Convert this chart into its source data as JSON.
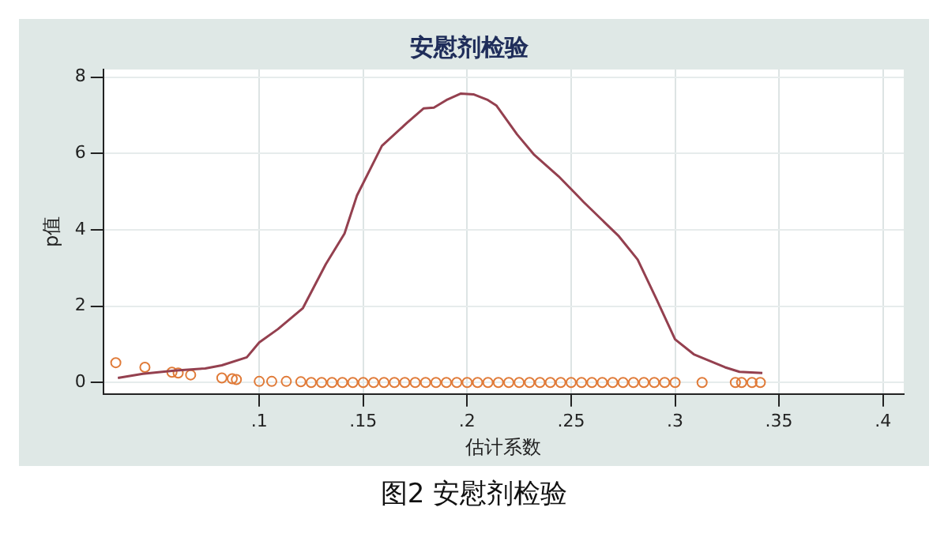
{
  "chart_data": {
    "type": "line",
    "title": "安慰剂检验",
    "xlabel": "估计系数",
    "ylabel": "p值",
    "annotations": [
      "图2  安慰剂检验"
    ],
    "series": [
      {
        "color": "#94404f",
        "marker": "none",
        "x": [
          0.032,
          0.044,
          0.059,
          0.074,
          0.082,
          0.094,
          0.1,
          0.109,
          0.121,
          0.132,
          0.141,
          0.147,
          0.159,
          0.171,
          0.179,
          0.184,
          0.19,
          0.197,
          0.203,
          0.21,
          0.214,
          0.224,
          0.232,
          0.244,
          0.253,
          0.256,
          0.273,
          0.282,
          0.291,
          0.3,
          0.309,
          0.324,
          0.331,
          0.342
        ],
        "values": [
          0.12,
          0.23,
          0.31,
          0.37,
          0.45,
          0.66,
          1.05,
          1.4,
          1.95,
          3.1,
          3.9,
          4.9,
          6.2,
          6.8,
          7.18,
          7.2,
          7.4,
          7.57,
          7.55,
          7.4,
          7.26,
          6.5,
          5.98,
          5.4,
          4.9,
          4.73,
          3.83,
          3.22,
          2.19,
          1.13,
          0.74,
          0.4,
          0.28,
          0.25
        ]
      },
      {
        "type": "scatter",
        "color": "#e07b39",
        "marker": "circle",
        "x": [
          0.031,
          0.045,
          0.058,
          0.061,
          0.067,
          0.082,
          0.087,
          0.089,
          0.1,
          0.106,
          0.113,
          0.12,
          0.125,
          0.13,
          0.135,
          0.14,
          0.145,
          0.15,
          0.155,
          0.16,
          0.165,
          0.17,
          0.175,
          0.18,
          0.185,
          0.19,
          0.195,
          0.2,
          0.205,
          0.21,
          0.215,
          0.22,
          0.225,
          0.23,
          0.235,
          0.24,
          0.245,
          0.25,
          0.255,
          0.26,
          0.265,
          0.27,
          0.275,
          0.28,
          0.285,
          0.29,
          0.295,
          0.3,
          0.313,
          0.329,
          0.332,
          0.337,
          0.341
        ],
        "values": [
          0.52,
          0.4,
          0.27,
          0.25,
          0.2,
          0.12,
          0.1,
          0.08,
          0.03,
          0.03,
          0.03,
          0.02,
          0,
          0,
          0,
          0,
          0,
          0,
          0,
          0,
          0,
          0,
          0,
          0,
          0,
          0,
          0,
          0,
          0,
          0,
          0,
          0,
          0,
          0,
          0,
          0,
          0,
          0,
          0,
          0,
          0,
          0,
          0,
          0,
          0,
          0,
          0,
          0,
          0,
          0,
          0,
          0,
          0
        ]
      }
    ],
    "xlim": [
      0.025,
      0.41
    ],
    "xticks": [
      {
        "value": 0.1,
        "label": ".1"
      },
      {
        "value": 0.15,
        "label": ".15"
      },
      {
        "value": 0.2,
        "label": ".2"
      },
      {
        "value": 0.25,
        "label": ".25"
      },
      {
        "value": 0.3,
        "label": ".3"
      },
      {
        "value": 0.35,
        "label": ".35"
      },
      {
        "value": 0.4,
        "label": ".4"
      }
    ],
    "ylim": [
      -0.3,
      8.2
    ],
    "yticks": [
      0,
      2,
      4,
      6,
      8
    ],
    "grid": true,
    "legend": false
  }
}
